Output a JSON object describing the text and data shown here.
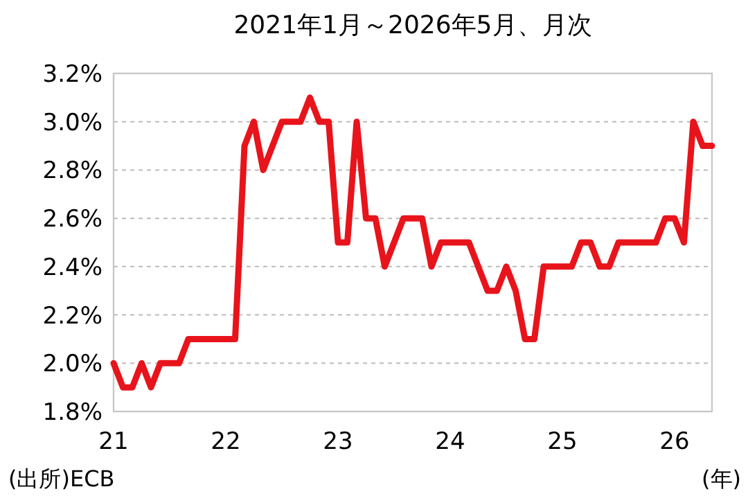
{
  "chart_data": {
    "type": "line",
    "title": "2021年1月～2026年5月、月次",
    "xlabel": "(年)",
    "annotations": [
      "(出所)ECB"
    ],
    "x": [
      "2021-01",
      "2021-02",
      "2021-03",
      "2021-04",
      "2021-05",
      "2021-06",
      "2021-07",
      "2021-08",
      "2021-09",
      "2021-10",
      "2021-11",
      "2021-12",
      "2022-01",
      "2022-02",
      "2022-03",
      "2022-04",
      "2022-05",
      "2022-06",
      "2022-07",
      "2022-08",
      "2022-09",
      "2022-10",
      "2022-11",
      "2022-12",
      "2023-01",
      "2023-02",
      "2023-03",
      "2023-04",
      "2023-05",
      "2023-06",
      "2023-07",
      "2023-08",
      "2023-09",
      "2023-10",
      "2023-11",
      "2023-12",
      "2024-01",
      "2024-02",
      "2024-03",
      "2024-04",
      "2024-05",
      "2024-06",
      "2024-07",
      "2024-08",
      "2024-09",
      "2024-10",
      "2024-11",
      "2024-12",
      "2025-01",
      "2025-02",
      "2025-03",
      "2025-04",
      "2025-05",
      "2025-06",
      "2025-07",
      "2025-08",
      "2025-09",
      "2025-10",
      "2025-11",
      "2025-12",
      "2026-01",
      "2026-02",
      "2026-03",
      "2026-04",
      "2026-05"
    ],
    "series": [
      {
        "color": "#e8141b",
        "values": [
          2.0,
          1.9,
          1.9,
          2.0,
          1.9,
          2.0,
          2.0,
          2.0,
          2.1,
          2.1,
          2.1,
          2.1,
          2.1,
          2.1,
          2.9,
          3.0,
          2.8,
          2.9,
          3.0,
          3.0,
          3.0,
          3.1,
          3.0,
          3.0,
          2.5,
          2.5,
          3.0,
          2.6,
          2.6,
          2.4,
          2.5,
          2.6,
          2.6,
          2.6,
          2.4,
          2.5,
          2.5,
          2.5,
          2.5,
          2.4,
          2.3,
          2.3,
          2.4,
          2.3,
          2.1,
          2.1,
          2.4,
          2.4,
          2.4,
          2.4,
          2.5,
          2.5,
          2.4,
          2.4,
          2.5,
          2.5,
          2.5,
          2.5,
          2.5,
          2.6,
          2.6,
          2.5,
          3.0,
          2.9,
          2.9
        ]
      }
    ],
    "xlim": [
      "2021-01",
      "2026-05"
    ],
    "xticks": [
      {
        "value": "2021-01",
        "label": "21"
      },
      {
        "value": "2022-01",
        "label": "22"
      },
      {
        "value": "2023-01",
        "label": "23"
      },
      {
        "value": "2024-01",
        "label": "24"
      },
      {
        "value": "2025-01",
        "label": "25"
      },
      {
        "value": "2026-01",
        "label": "26"
      }
    ],
    "ylim": [
      1.8,
      3.2
    ],
    "yticks": [
      {
        "value": 1.8,
        "label": "1.8%"
      },
      {
        "value": 2.0,
        "label": "2.0%"
      },
      {
        "value": 2.2,
        "label": "2.2%"
      },
      {
        "value": 2.4,
        "label": "2.4%"
      },
      {
        "value": 2.6,
        "label": "2.6%"
      },
      {
        "value": 2.8,
        "label": "2.8%"
      },
      {
        "value": 3.0,
        "label": "3.0%"
      },
      {
        "value": 3.2,
        "label": "3.2%"
      }
    ],
    "grid": "y",
    "marker": "none",
    "line_style": "solid"
  }
}
